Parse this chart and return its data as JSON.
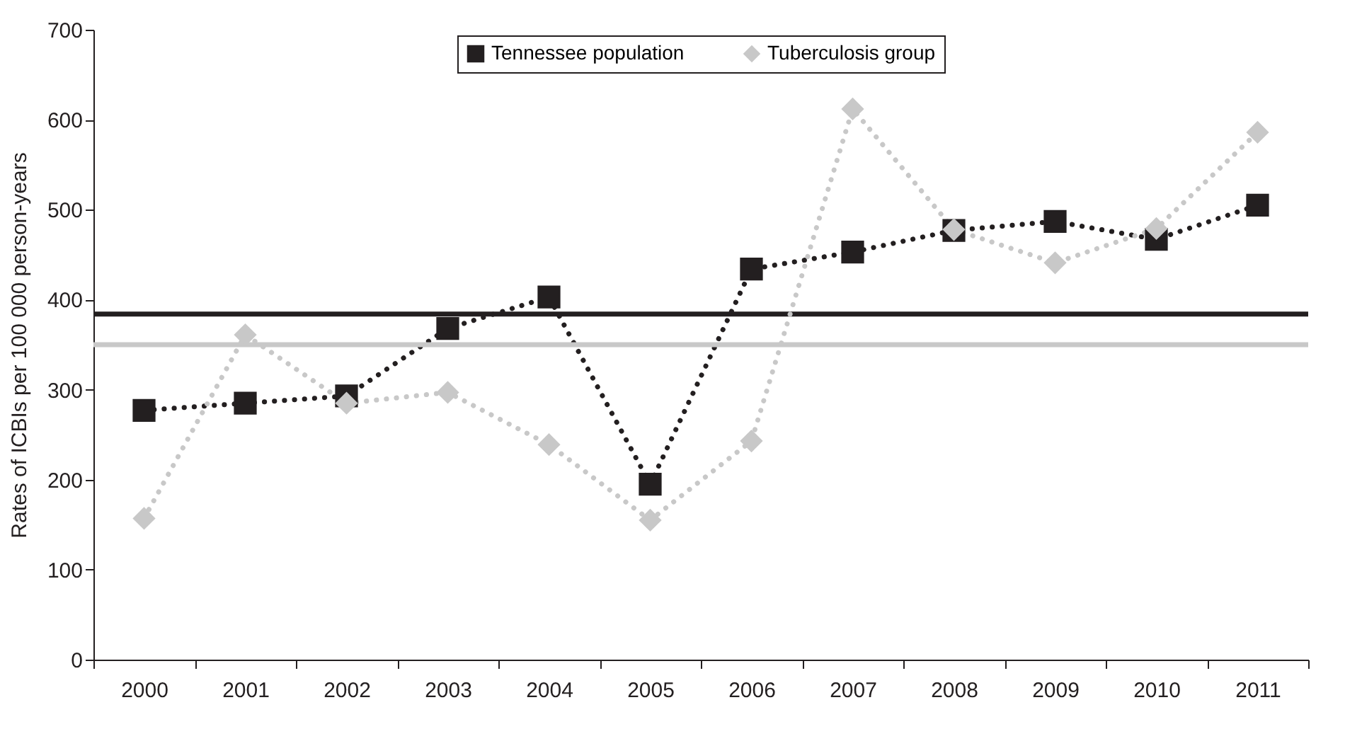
{
  "chart_data": {
    "type": "line",
    "ylabel": "Rates of ICBIs per 100 000 person-years",
    "categories": [
      "2000",
      "2001",
      "2002",
      "2003",
      "2004",
      "2005",
      "2006",
      "2007",
      "2008",
      "2009",
      "2010",
      "2011"
    ],
    "series": [
      {
        "name": "Tennessee population",
        "color": "#231f20",
        "marker": "square",
        "line_style": "dotted",
        "values": [
          277,
          285,
          293,
          368,
          403,
          195,
          434,
          453,
          477,
          487,
          467,
          505
        ]
      },
      {
        "name": "Tuberculosis group",
        "color": "#c8c8c8",
        "marker": "diamond",
        "line_style": "dotted",
        "values": [
          157,
          361,
          285,
          297,
          239,
          155,
          243,
          612,
          478,
          441,
          479,
          586
        ]
      }
    ],
    "ylim": [
      0,
      700
    ],
    "yticks": [
      0,
      100,
      200,
      300,
      400,
      500,
      600,
      700
    ],
    "grid": false,
    "legend": "top",
    "ref_lines": [
      {
        "axis": "y",
        "value": 384,
        "color": "#231f20",
        "line_style": "solid"
      },
      {
        "axis": "y",
        "value": 350,
        "color": "#c8c8c8",
        "line_style": "solid"
      }
    ]
  }
}
